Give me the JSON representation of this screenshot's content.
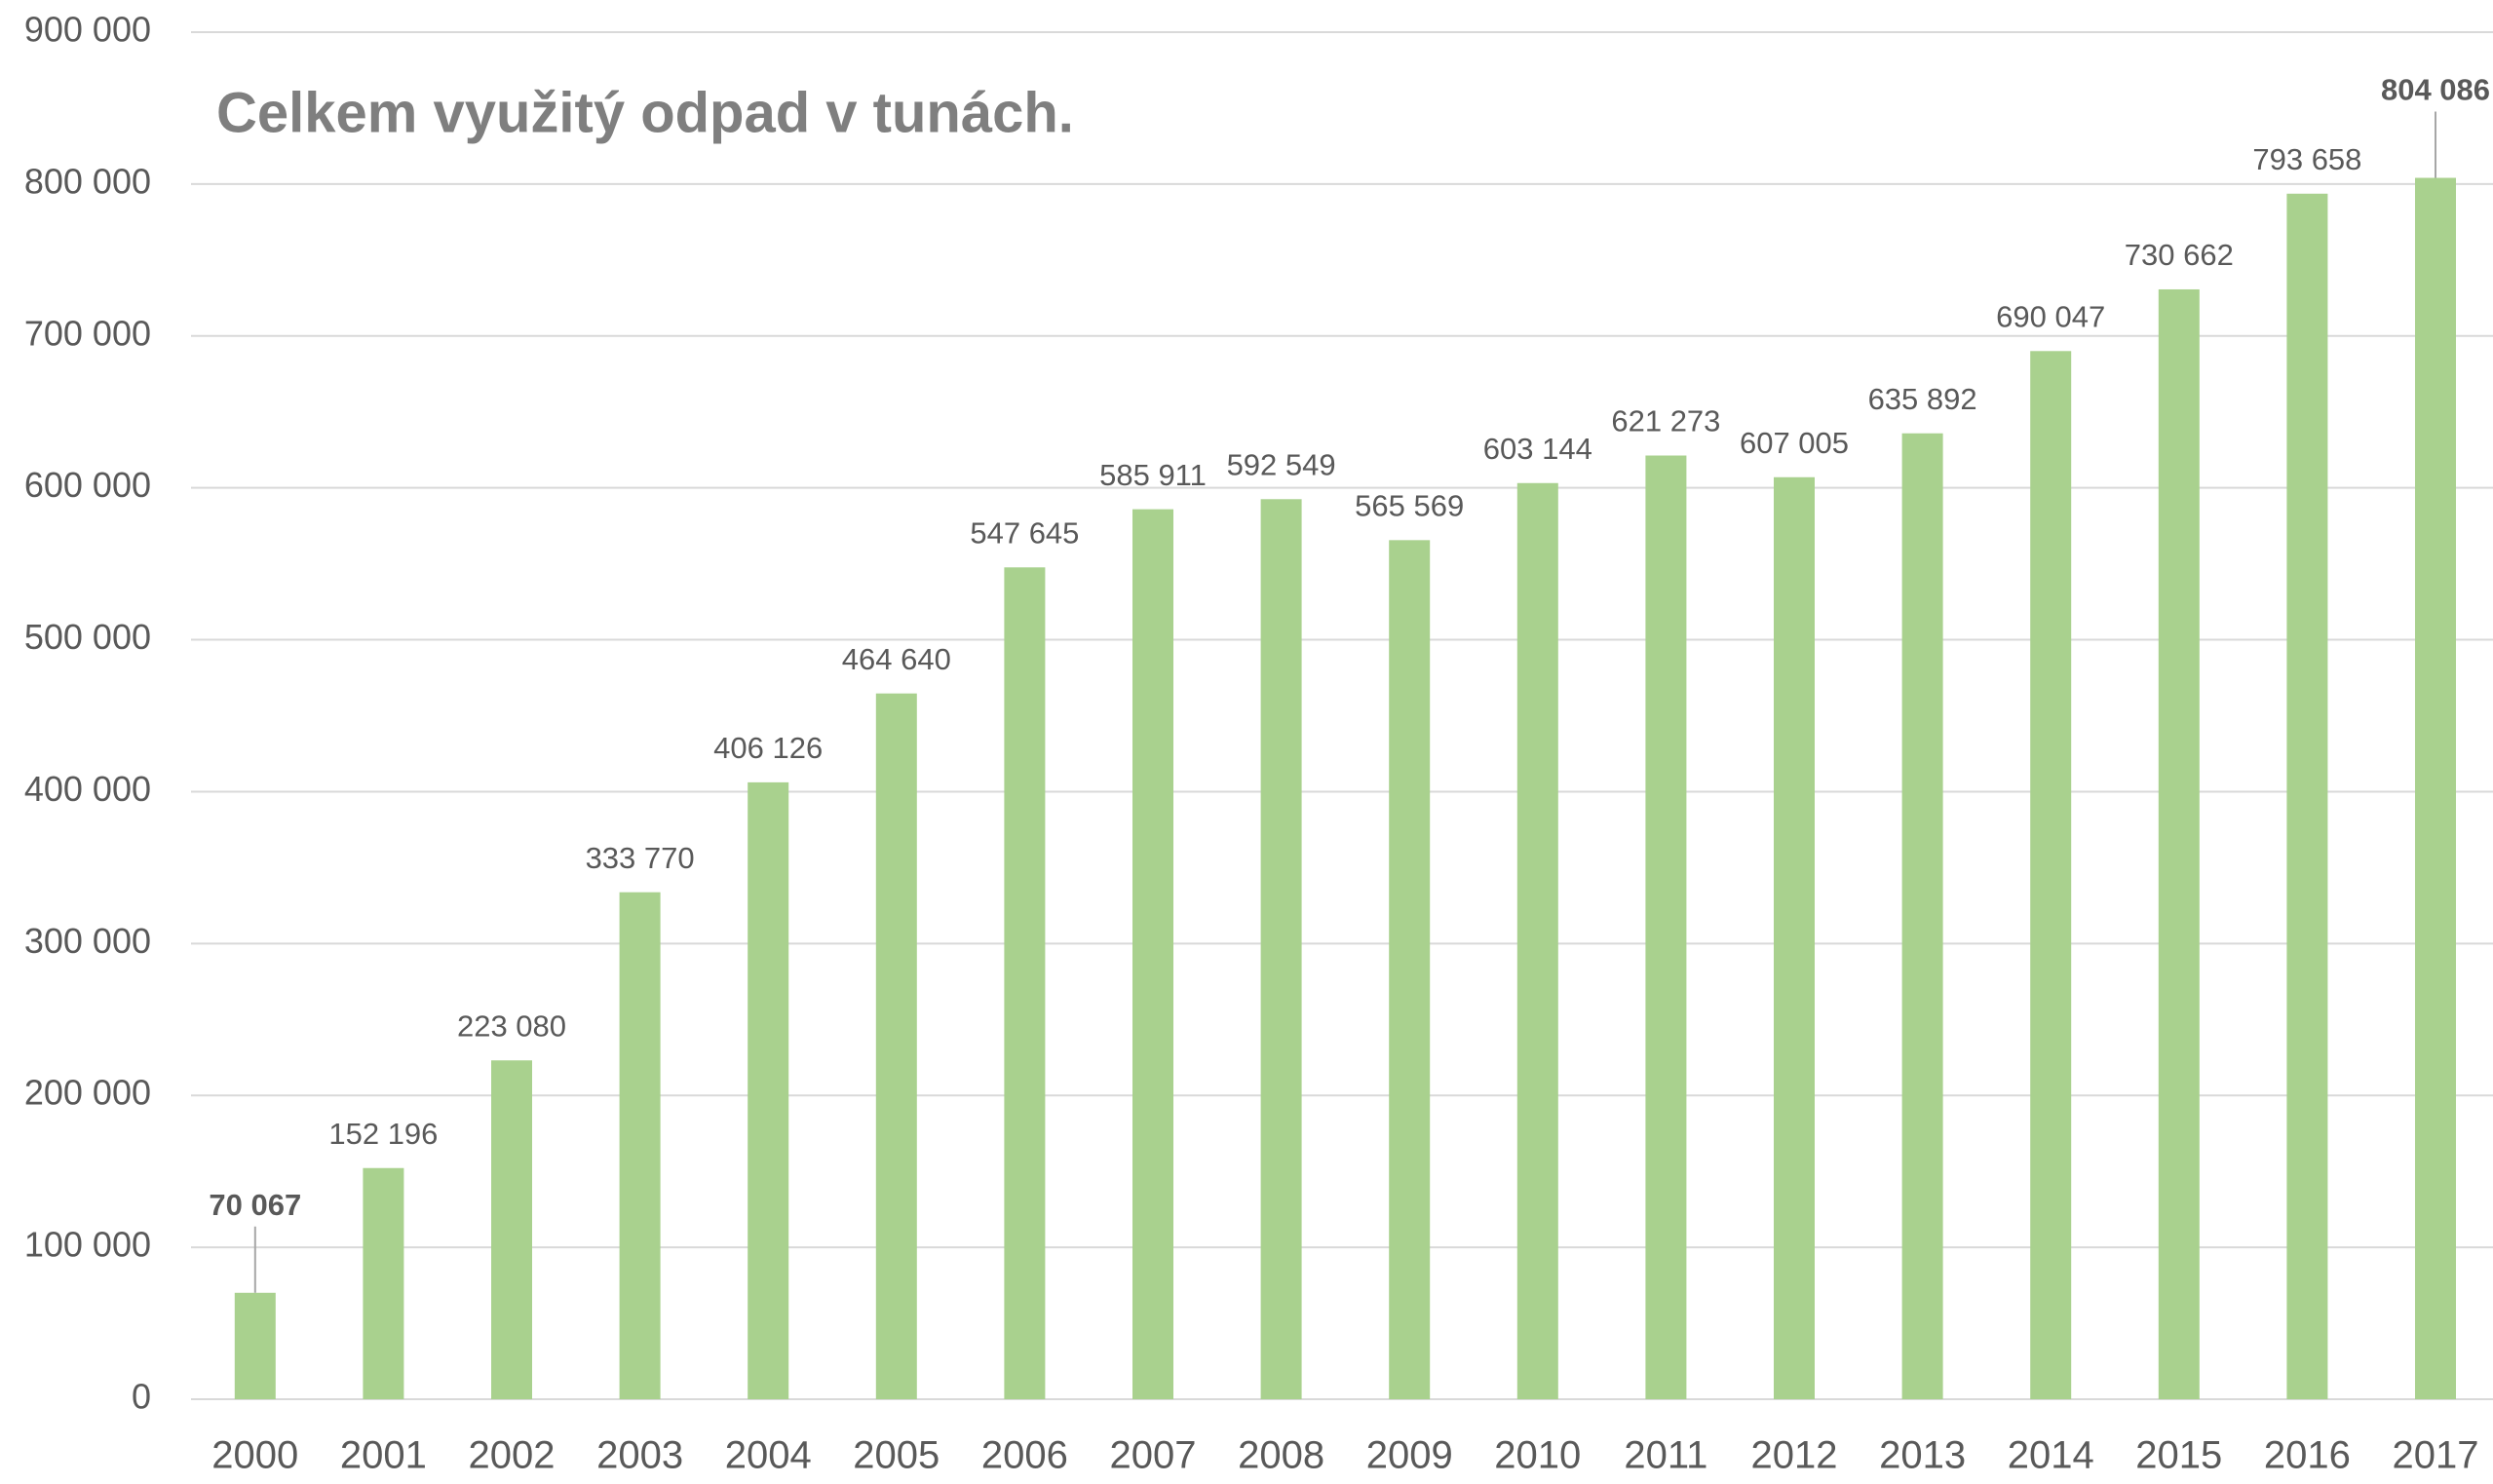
{
  "chart_data": {
    "type": "bar",
    "title": "Celkem využitý odpad v tunách.",
    "categories": [
      "2000",
      "2001",
      "2002",
      "2003",
      "2004",
      "2005",
      "2006",
      "2007",
      "2008",
      "2009",
      "2010",
      "2011",
      "2012",
      "2013",
      "2014",
      "2015",
      "2016",
      "2017"
    ],
    "values": [
      70067,
      152196,
      223080,
      333770,
      406126,
      464640,
      547645,
      585911,
      592549,
      565569,
      603144,
      621273,
      607005,
      635892,
      690047,
      730662,
      793658,
      804086
    ],
    "value_labels": [
      "70 067",
      "152 196",
      "223 080",
      "333 770",
      "406 126",
      "464 640",
      "547 645",
      "585 911",
      "592 549",
      "565 569",
      "603 144",
      "621 273",
      "607 005",
      "635 892",
      "690 047",
      "730 662",
      "793 658",
      "804 086"
    ],
    "bold_labels": [
      0,
      17
    ],
    "color": "#a9d18e",
    "ylim": [
      0,
      900000
    ],
    "yticks": [
      0,
      {
        "value": 100000,
        "label": "100 000"
      },
      {
        "value": 200000,
        "label": "200 000"
      },
      {
        "value": 300000,
        "label": "300 000"
      },
      {
        "value": 400000,
        "label": "400 000"
      },
      {
        "value": 500000,
        "label": "500 000"
      },
      {
        "value": 600000,
        "label": "600 000"
      },
      {
        "value": 700000,
        "label": "700 000"
      },
      {
        "value": 800000,
        "label": "800 000"
      },
      {
        "value": 900000,
        "label": "900 000"
      }
    ],
    "grid": true
  }
}
